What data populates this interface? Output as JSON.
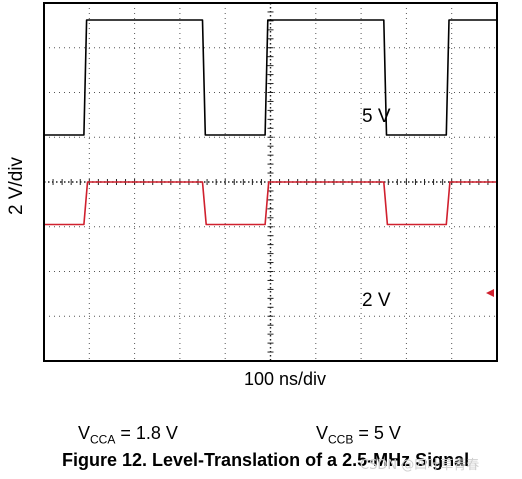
{
  "chart_data": {
    "type": "line",
    "title": "",
    "xlabel": "100 ns/div",
    "ylabel": "2 V/div",
    "x_units": "ns",
    "x_range": [
      0,
      1000
    ],
    "y_divisions": 8,
    "grid": true,
    "series": [
      {
        "name": "5 V",
        "color": "#000000",
        "low_div": 1.05,
        "high_div": 3.62,
        "x_ns": [
          0,
          88,
          94,
          350,
          356,
          488,
          494,
          750,
          756,
          888,
          894,
          1000
        ],
        "level": [
          "low",
          "low",
          "high",
          "high",
          "low",
          "low",
          "high",
          "high",
          "low",
          "low",
          "high",
          "high"
        ]
      },
      {
        "name": "2 V",
        "color": "#d0202e",
        "low_div": -0.95,
        "high_div": 0.0,
        "x_ns": [
          0,
          88,
          96,
          350,
          358,
          488,
          496,
          750,
          758,
          888,
          896,
          1000
        ],
        "level": [
          "low",
          "low",
          "high",
          "high",
          "low",
          "low",
          "high",
          "high",
          "low",
          "low",
          "high",
          "high"
        ]
      }
    ],
    "annotations": [
      "5 V",
      "2 V"
    ]
  },
  "conditions": {
    "vcca_main": "V",
    "vcca_sub": "CCA",
    "vcca_value": " = 1.8 V",
    "vccb_main": "V",
    "vccb_sub": "CCB",
    "vccb_value": " = 5 V"
  },
  "caption": "Figure 12. Level-Translation of a 2.5-MHz Signal",
  "watermark": "CSDN @四叶草青春"
}
